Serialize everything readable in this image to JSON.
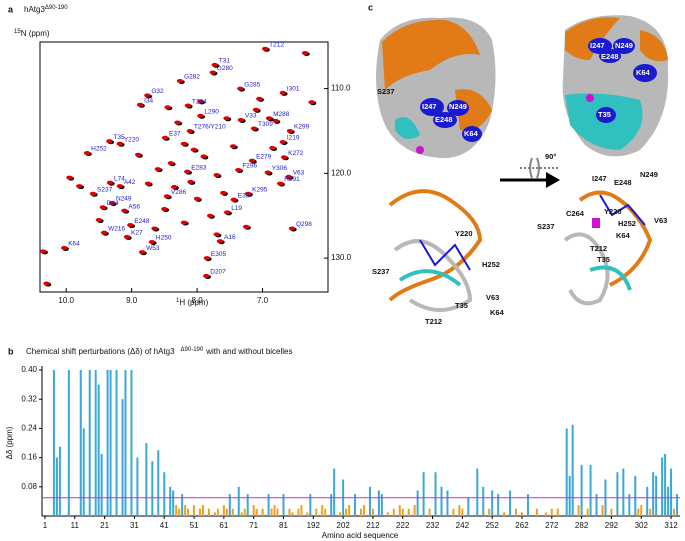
{
  "panel_a": {
    "label": "a",
    "title": "hAtg3",
    "title_sup": "Δ90-190",
    "x_label_sup": "1",
    "x_label": "H (ppm)",
    "y_label_sup": "15",
    "y_label": "N (ppm)",
    "xlim": [
      10.4,
      6.0
    ],
    "ylim": [
      104.5,
      134
    ],
    "xticks": [
      {
        "value": 10,
        "label": "10.0"
      },
      {
        "value": 9,
        "label": "9.0"
      },
      {
        "value": 8,
        "label": "8.0"
      },
      {
        "value": 7,
        "label": "7.0"
      }
    ],
    "yticks": [
      {
        "value": 110,
        "label": "110.0"
      },
      {
        "value": 120,
        "label": "120.0"
      },
      {
        "value": 130,
        "label": "130.0"
      }
    ],
    "colors": [
      "#e00000",
      "#000000"
    ],
    "label_color": "#1a1ad0",
    "peaks": [
      {
        "label": "T212",
        "h": 6.96,
        "n": 105.3
      },
      {
        "label": "T31",
        "h": 7.73,
        "n": 107.2
      },
      {
        "label": "G280",
        "h": 7.76,
        "n": 108.1
      },
      {
        "label": "G282",
        "h": 8.26,
        "n": 109.1
      },
      {
        "label": "G285",
        "h": 7.34,
        "n": 110
      },
      {
        "label": "I301",
        "h": 6.69,
        "n": 110.5
      },
      {
        "label": "G32",
        "h": 8.76,
        "n": 110.8
      },
      {
        "label": "I34",
        "h": 8.87,
        "n": 111.9
      },
      {
        "label": "T244",
        "h": 8.14,
        "n": 112
      },
      {
        "label": "L290",
        "h": 7.95,
        "n": 113.2
      },
      {
        "label": "V33",
        "h": 7.33,
        "n": 113.7
      },
      {
        "label": "M288",
        "h": 6.9,
        "n": 113.5
      },
      {
        "label": "T309",
        "h": 7.13,
        "n": 114.7
      },
      {
        "label": "T276/Y210",
        "h": 8.11,
        "n": 115
      },
      {
        "label": "K299",
        "h": 6.58,
        "n": 115
      },
      {
        "label": "E37",
        "h": 8.49,
        "n": 115.8
      },
      {
        "label": "T35",
        "h": 9.34,
        "n": 116.2
      },
      {
        "label": "I219",
        "h": 6.69,
        "n": 116.3
      },
      {
        "label": "Y220",
        "h": 9.18,
        "n": 116.5
      },
      {
        "label": "H252",
        "h": 9.68,
        "n": 117.6
      },
      {
        "label": "K272",
        "h": 6.67,
        "n": 118.1
      },
      {
        "label": "E279",
        "h": 7.16,
        "n": 118.5
      },
      {
        "label": "F296",
        "h": 7.37,
        "n": 119.6
      },
      {
        "label": "E283",
        "h": 8.15,
        "n": 119.8
      },
      {
        "label": "Y306",
        "h": 6.92,
        "n": 119.9
      },
      {
        "label": "V63",
        "h": 6.6,
        "n": 120.4
      },
      {
        "label": "L74",
        "h": 9.33,
        "n": 121.1
      },
      {
        "label": "R291",
        "h": 6.73,
        "n": 121.2
      },
      {
        "label": "A42",
        "h": 9.18,
        "n": 121.5
      },
      {
        "label": "S237",
        "h": 9.59,
        "n": 122.4
      },
      {
        "label": "K295",
        "h": 7.22,
        "n": 122.4
      },
      {
        "label": "V286",
        "h": 8.46,
        "n": 122.7
      },
      {
        "label": "E38",
        "h": 7.44,
        "n": 123.1
      },
      {
        "label": "N249",
        "h": 9.3,
        "n": 123.5
      },
      {
        "label": "D44",
        "h": 9.44,
        "n": 124
      },
      {
        "label": "A56",
        "h": 9.11,
        "n": 124.4
      },
      {
        "label": "L19",
        "h": 7.54,
        "n": 124.6
      },
      {
        "label": "E248",
        "h": 9.02,
        "n": 126.1
      },
      {
        "label": "Q298",
        "h": 6.55,
        "n": 126.5
      },
      {
        "label": "W216",
        "h": 9.42,
        "n": 127
      },
      {
        "label": "K27",
        "h": 9.07,
        "n": 127.5
      },
      {
        "label": "A16",
        "h": 7.65,
        "n": 128
      },
      {
        "label": "H250",
        "h": 8.69,
        "n": 128.1
      },
      {
        "label": "K64",
        "h": 10.03,
        "n": 128.8
      },
      {
        "label": "W53",
        "h": 8.84,
        "n": 129.3
      },
      {
        "label": "E305",
        "h": 7.85,
        "n": 130
      },
      {
        "label": "D207",
        "h": 7.86,
        "n": 132.1
      }
    ],
    "other_peaks": {
      "h": [
        8.3,
        8.2,
        8.05,
        7.9,
        8.4,
        8.6,
        7.7,
        8.1,
        8.35,
        7.6,
        8.0,
        8.5,
        7.8,
        8.2,
        7.45,
        7.55,
        7.1,
        6.8,
        6.85,
        9.8,
        9.5,
        10.35,
        10.3,
        9.95,
        8.9,
        8.75,
        7.95,
        8.45,
        7.25,
        8.65,
        7.7,
        6.35,
        6.25,
        7.05
      ],
      "n": [
        114,
        116.5,
        117.2,
        118,
        118.8,
        119.5,
        120.2,
        121,
        121.6,
        122.3,
        123,
        124.2,
        125,
        125.8,
        116.8,
        113.5,
        112.5,
        113.8,
        117,
        121.5,
        125.5,
        129.2,
        133,
        120.5,
        117.8,
        121.2,
        111.5,
        112.2,
        126.3,
        126.5,
        127.2,
        105.8,
        111.6,
        111.2
      ]
    }
  },
  "panel_b": {
    "label": "b",
    "title": "Chemical shift perturbations (Δδ) of hAtg3",
    "title_sup": "Δ90-190",
    "title_end": "with and without bicelles",
    "y_label": "Δδ (ppm)",
    "x_label": "Amino acid sequence",
    "ylim": [
      0,
      0.4
    ],
    "yticks": [
      0.08,
      0.16,
      0.24,
      0.32,
      {
        "value": 0.4,
        "label": "0.40"
      }
    ],
    "xlim": [
      -1,
      213
    ],
    "xticks": [
      {
        "value": 0,
        "label": "1"
      },
      {
        "value": 10,
        "label": "11"
      },
      {
        "value": 20,
        "label": "21"
      },
      {
        "value": 30,
        "label": "31"
      },
      {
        "value": 40,
        "label": "41"
      },
      {
        "value": 50,
        "label": "51"
      },
      {
        "value": 60,
        "label": "61"
      },
      {
        "value": 70,
        "label": "71"
      },
      {
        "value": 80,
        "label": "81"
      },
      {
        "value": 90,
        "label": "192"
      },
      {
        "value": 100,
        "label": "202"
      },
      {
        "value": 110,
        "label": "212"
      },
      {
        "value": 120,
        "label": "222"
      },
      {
        "value": 130,
        "label": "232"
      },
      {
        "value": 140,
        "label": "242"
      },
      {
        "value": 150,
        "label": "252"
      },
      {
        "value": 160,
        "label": "262"
      },
      {
        "value": 170,
        "label": "272"
      },
      {
        "value": 180,
        "label": "282"
      },
      {
        "value": 190,
        "label": "292"
      },
      {
        "value": 200,
        "label": "302"
      },
      {
        "value": 210,
        "label": "312"
      }
    ],
    "threshold": {
      "value": 0.05,
      "color": "#e020e0"
    },
    "series": [
      {
        "color": "#3aa8d8",
        "x": [
          3,
          4,
          5,
          8,
          12,
          13,
          15,
          17,
          18,
          19,
          21,
          22,
          24,
          26,
          27,
          29,
          31,
          34,
          36,
          38,
          40,
          42,
          43,
          46,
          62,
          65,
          68,
          75,
          80,
          89,
          96,
          97,
          100,
          104,
          109,
          112,
          113,
          125,
          127,
          131,
          133,
          135,
          142,
          145,
          147,
          150,
          152,
          156,
          162,
          175,
          176,
          177,
          180,
          183,
          185,
          188,
          192,
          194,
          196,
          198,
          202,
          204,
          205,
          207,
          208,
          209,
          210,
          212
        ],
        "values": [
          0.4,
          0.16,
          0.19,
          0.4,
          0.4,
          0.24,
          0.4,
          0.4,
          0.36,
          0.17,
          0.4,
          0.4,
          0.4,
          0.32,
          0.4,
          0.4,
          0.16,
          0.2,
          0.15,
          0.18,
          0.12,
          0.08,
          0.07,
          0.06,
          0.06,
          0.08,
          0.06,
          0.06,
          0.06,
          0.06,
          0.06,
          0.13,
          0.1,
          0.06,
          0.08,
          0.07,
          0.06,
          0.07,
          0.12,
          0.12,
          0.08,
          0.07,
          0.05,
          0.13,
          0.08,
          0.07,
          0.06,
          0.07,
          0.06,
          0.24,
          0.11,
          0.25,
          0.14,
          0.14,
          0.06,
          0.1,
          0.12,
          0.13,
          0.06,
          0.11,
          0.08,
          0.12,
          0.11,
          0.16,
          0.17,
          0.08,
          0.13,
          0.06
        ]
      },
      {
        "color": "#f0a020",
        "x": [
          44,
          45,
          47,
          48,
          50,
          52,
          53,
          55,
          57,
          58,
          60,
          61,
          63,
          66,
          67,
          70,
          71,
          73,
          76,
          77,
          78,
          82,
          83,
          85,
          86,
          88,
          91,
          93,
          94,
          99,
          101,
          102,
          106,
          107,
          110,
          115,
          117,
          119,
          120,
          122,
          124,
          129,
          137,
          139,
          140,
          149,
          154,
          158,
          160,
          165,
          168,
          170,
          172,
          179,
          182,
          187,
          190,
          199,
          200,
          203,
          211
        ],
        "values": [
          0.03,
          0.02,
          0.03,
          0.02,
          0.03,
          0.02,
          0.03,
          0.02,
          0.01,
          0.02,
          0.03,
          0.02,
          0.02,
          0.01,
          0.02,
          0.03,
          0.02,
          0.02,
          0.02,
          0.03,
          0.02,
          0.02,
          0.01,
          0.02,
          0.03,
          0.01,
          0.02,
          0.03,
          0.02,
          0.01,
          0.02,
          0.03,
          0.02,
          0.03,
          0.02,
          0.01,
          0.02,
          0.03,
          0.02,
          0.02,
          0.03,
          0.02,
          0.02,
          0.03,
          0.02,
          0.02,
          0.01,
          0.02,
          0.01,
          0.02,
          0.01,
          0.02,
          0.02,
          0.03,
          0.02,
          0.03,
          0.02,
          0.02,
          0.03,
          0.02,
          0.02
        ]
      }
    ]
  },
  "panel_c": {
    "label": "c",
    "rotation": "90°",
    "top_left": [
      "S237",
      "I247",
      "N249",
      "E248",
      "K64"
    ],
    "top_right": [
      "I247",
      "N249",
      "E248",
      "K64",
      "T35"
    ],
    "bottom_left": [
      "Y220",
      "S237",
      "H252",
      "V63",
      "T35",
      "K64",
      "T212"
    ],
    "bottom_right": [
      "I247",
      "E248",
      "N249",
      "C264",
      "Y220",
      "S237",
      "H252",
      "V63",
      "K64",
      "T212",
      "T35"
    ]
  }
}
